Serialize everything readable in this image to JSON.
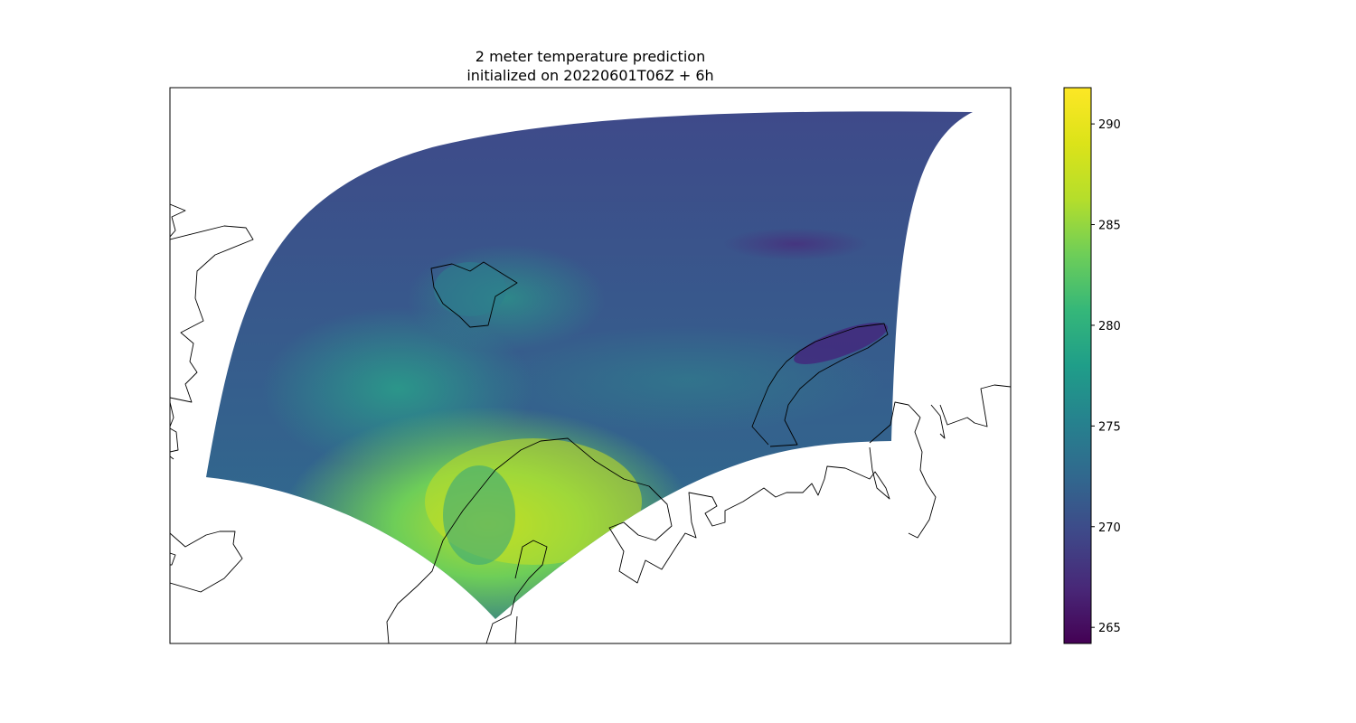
{
  "title": {
    "line1": "2 meter temperature prediction",
    "line2": "initialized on 20220601T06Z + 6h"
  },
  "colorbar": {
    "colormap": "viridis",
    "min": 264.2,
    "max": 291.8,
    "ticks": [
      265,
      270,
      275,
      280,
      285,
      290
    ],
    "tick_labels": [
      "265",
      "270",
      "275",
      "280",
      "285",
      "290"
    ]
  },
  "map": {
    "field": "2 meter temperature",
    "features": [
      "coastlines"
    ],
    "colors": {
      "background": "#ffffff",
      "coastline": "#000000",
      "cold_ocean": "#3f4889",
      "mid_ocean": "#31688e",
      "warm_land": "#b5de2b",
      "coldest": "#440154",
      "warmest": "#fde725"
    }
  }
}
